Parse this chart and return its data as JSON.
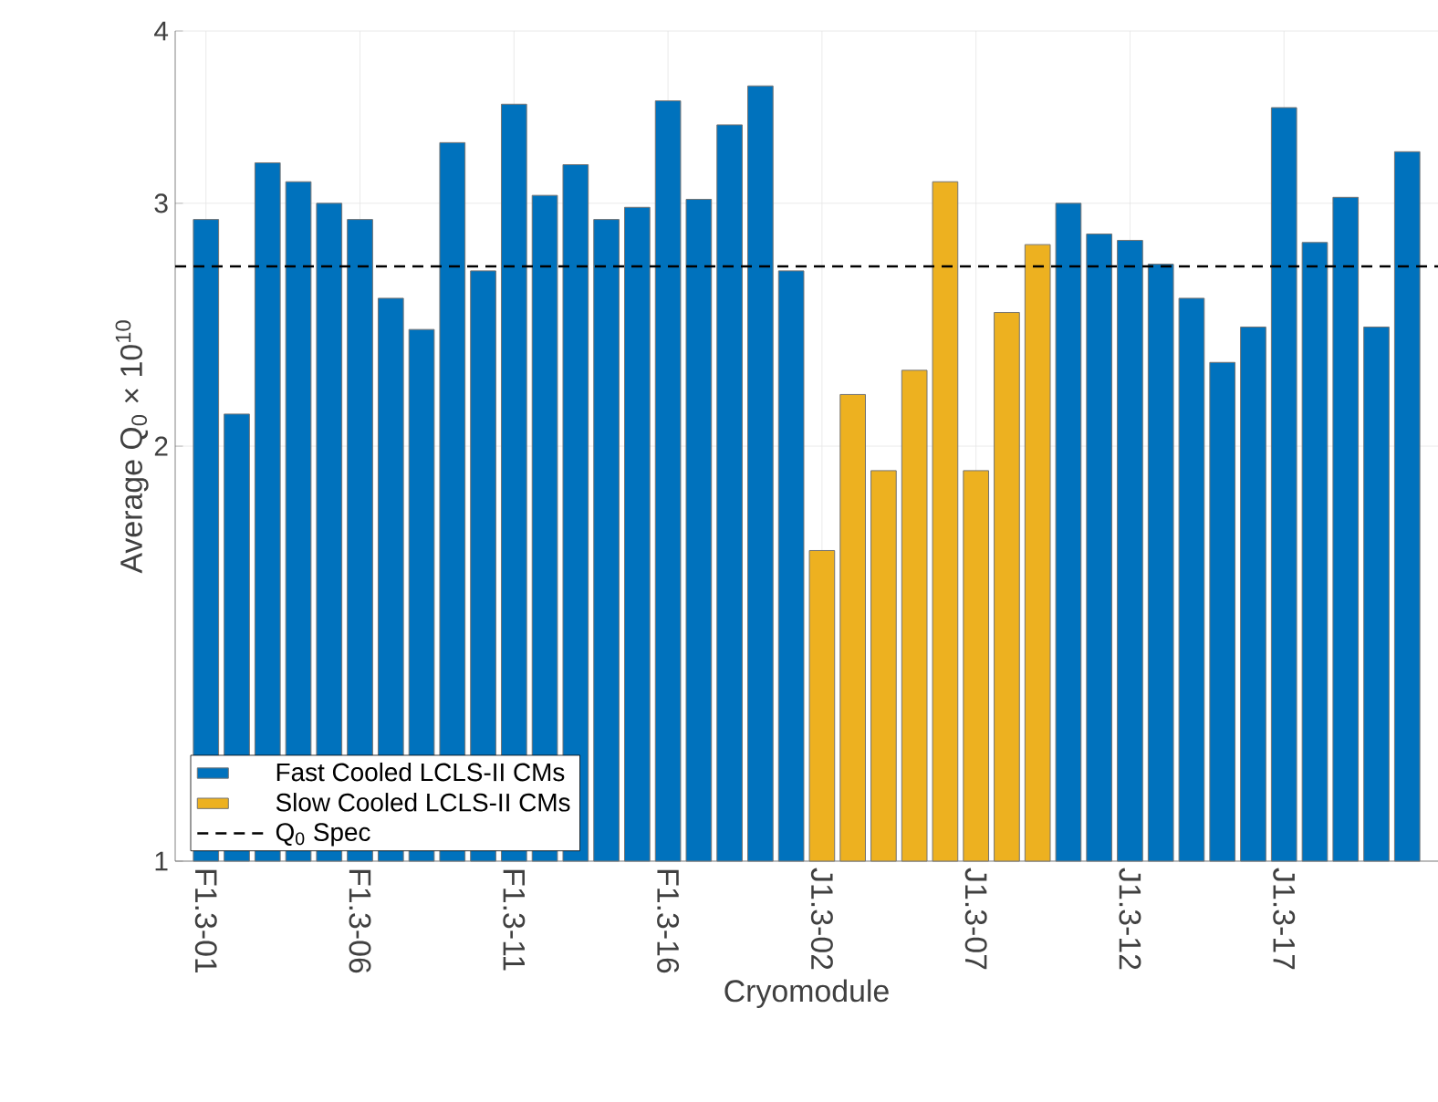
{
  "chart_data": {
    "type": "bar",
    "xlabel": "Cryomodule",
    "ylabel": "Average Q$_{0}$ × 10$^{10}$",
    "categories": [
      "F1.3-01",
      null,
      null,
      null,
      null,
      "F1.3-06",
      null,
      null,
      null,
      null,
      "F1.3-11",
      null,
      null,
      null,
      null,
      "F1.3-16",
      null,
      null,
      null,
      null,
      "J1.3-02",
      null,
      null,
      null,
      null,
      "J1.3-07",
      null,
      null,
      null,
      null,
      "J1.3-12",
      null,
      null,
      null,
      null,
      "J1.3-17",
      null,
      null,
      null,
      null
    ],
    "series": [
      {
        "name": "Fast Cooled LCLS-II CMs",
        "color": "#0072bd",
        "values": [
          2.92,
          2.11,
          3.21,
          3.11,
          3.0,
          2.92,
          2.56,
          2.43,
          3.32,
          2.68,
          3.54,
          3.04,
          3.2,
          2.92,
          2.98,
          3.56,
          3.02,
          3.42,
          3.65,
          2.68,
          null,
          null,
          null,
          null,
          null,
          null,
          null,
          null,
          3.0,
          2.85,
          2.82,
          2.71,
          2.56,
          2.3,
          2.44,
          3.52,
          2.81,
          3.03,
          2.44,
          3.27
        ]
      },
      {
        "name": "Slow Cooled LCLS-II CMs",
        "color": "#edb120",
        "values": [
          null,
          null,
          null,
          null,
          null,
          null,
          null,
          null,
          null,
          null,
          null,
          null,
          null,
          null,
          null,
          null,
          null,
          null,
          null,
          null,
          1.68,
          2.18,
          1.92,
          2.27,
          3.11,
          1.92,
          2.5,
          2.8,
          null,
          null,
          null,
          null,
          null,
          null,
          null,
          null,
          null,
          null,
          null,
          null
        ]
      }
    ],
    "ref_lines": [
      {
        "axis": "y",
        "value": 2.7,
        "label": "Q$_{0}$ Spec",
        "color": "#000000",
        "line_style": "dashed"
      }
    ],
    "log": "y",
    "ylim": [
      1,
      4
    ],
    "yticks": [
      1,
      2,
      3,
      4
    ],
    "grid": true,
    "legend": "bottom left"
  }
}
